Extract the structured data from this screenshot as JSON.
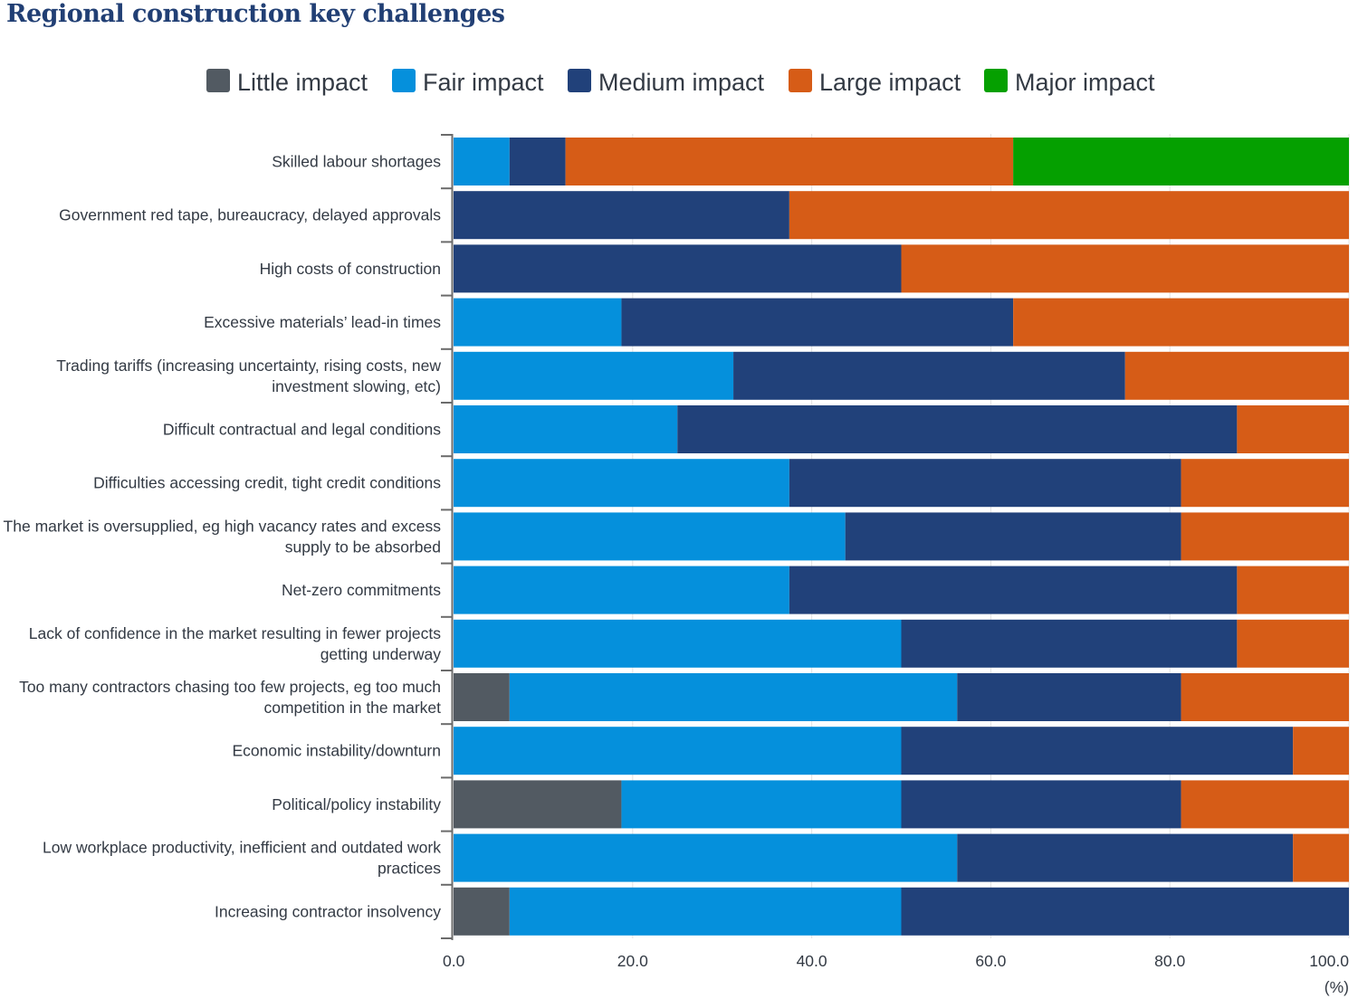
{
  "title": "Regional construction key challenges",
  "chart_data": {
    "type": "bar",
    "orientation": "horizontal",
    "stacked": true,
    "title": "Regional construction key challenges",
    "xlabel": "(%)",
    "ylabel": "",
    "xlim": [
      0,
      100
    ],
    "xticks": [
      "0.0",
      "20.0",
      "40.0",
      "60.0",
      "80.0",
      "100.0"
    ],
    "grid": true,
    "legend_position": "top-center",
    "categories": [
      "Skilled labour shortages",
      "Government red tape, bureaucracy, delayed approvals",
      "High costs of construction",
      "Excessive materials’ lead-in times",
      "Trading tariffs (increasing uncertainty, rising costs, new investment slowing, etc)",
      "Difficult contractual and legal conditions",
      "Difficulties accessing credit, tight credit conditions",
      "The market is oversupplied, eg high vacancy rates and excess supply to be absorbed",
      "Net-zero commitments",
      "Lack of confidence in the market resulting in fewer projects getting underway",
      "Too many contractors chasing too few projects, eg too much competition in the market",
      "Economic instability/downturn",
      "Political/policy instability",
      "Low workplace productivity, inefficient and outdated work practices",
      "Increasing contractor insolvency"
    ],
    "category_lines": [
      [
        "Skilled labour shortages"
      ],
      [
        "Government red tape, bureaucracy, delayed approvals"
      ],
      [
        "High costs of construction"
      ],
      [
        "Excessive materials’ lead-in times"
      ],
      [
        "Trading tariffs (increasing uncertainty, rising costs, new",
        "investment slowing, etc)"
      ],
      [
        "Difficult contractual and legal conditions"
      ],
      [
        "Difficulties accessing credit, tight credit conditions"
      ],
      [
        "The market is oversupplied, eg high vacancy rates and excess",
        "supply to be absorbed"
      ],
      [
        "Net-zero commitments"
      ],
      [
        "Lack of confidence in the market resulting in fewer projects",
        "getting underway"
      ],
      [
        "Too many contractors chasing too few projects, eg too much",
        "competition in the market"
      ],
      [
        "Economic instability/downturn"
      ],
      [
        "Political/policy instability"
      ],
      [
        "Low workplace productivity, inefficient and outdated work",
        "practices"
      ],
      [
        "Increasing contractor insolvency"
      ]
    ],
    "series": [
      {
        "name": "Little impact",
        "color": "#525a62",
        "values": [
          0,
          0,
          0,
          0,
          0,
          0,
          0,
          0,
          0,
          0,
          6.25,
          0,
          18.75,
          0,
          6.25
        ]
      },
      {
        "name": "Fair impact",
        "color": "#0590dc",
        "values": [
          6.25,
          0,
          0,
          18.75,
          31.25,
          25,
          37.5,
          43.75,
          37.5,
          50,
          50,
          50,
          31.25,
          56.25,
          43.75
        ]
      },
      {
        "name": "Medium impact",
        "color": "#21417a",
        "values": [
          6.25,
          37.5,
          50,
          43.75,
          43.75,
          62.5,
          43.75,
          37.5,
          50,
          37.5,
          25,
          43.75,
          31.25,
          37.5,
          50
        ]
      },
      {
        "name": "Large impact",
        "color": "#d65c17",
        "values": [
          50,
          62.5,
          50,
          37.5,
          25,
          12.5,
          18.75,
          18.75,
          12.5,
          12.5,
          18.75,
          6.25,
          18.75,
          6.25,
          0
        ]
      },
      {
        "name": "Major impact",
        "color": "#05a000",
        "values": [
          37.5,
          0,
          0,
          0,
          0,
          0,
          0,
          0,
          0,
          0,
          0,
          0,
          0,
          0,
          0
        ]
      }
    ]
  }
}
